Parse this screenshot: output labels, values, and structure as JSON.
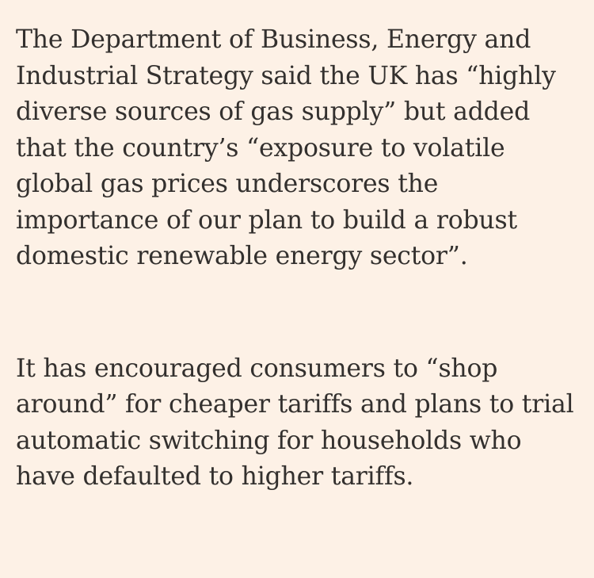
{
  "article": {
    "paragraphs": [
      {
        "lines": [
          "The Department of Business, Energy and",
          "Industrial Strategy said the UK has “highly",
          "diverse sources of gas supply” but added",
          "that the country’s “exposure to volatile",
          "global gas prices underscores the",
          "importance of our plan to build a robust",
          "domestic renewable energy sector”."
        ]
      },
      {
        "lines": [
          "It has encouraged consumers to “shop",
          "around” for cheaper tariffs and plans to trial",
          "automatic switching for households who",
          "have defaulted to higher tariffs."
        ]
      }
    ]
  }
}
